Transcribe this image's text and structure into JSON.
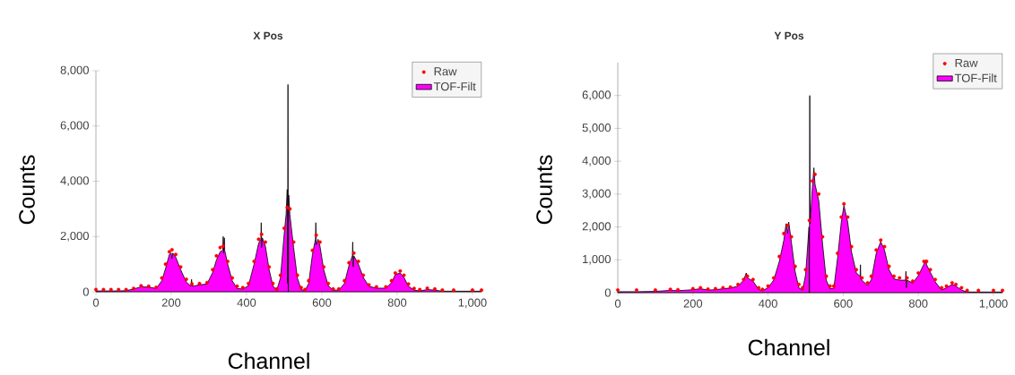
{
  "chart_data": [
    {
      "type": "area",
      "title": "X Pos",
      "xlabel": "Channel",
      "ylabel": "Counts",
      "xlim": [
        0,
        1024
      ],
      "ylim": [
        0,
        8000
      ],
      "xticks": [
        0,
        200,
        400,
        600,
        800,
        {
          "value": 1000,
          "label": "1,000"
        }
      ],
      "yticks": [
        0,
        {
          "value": 2000,
          "label": "2,000"
        },
        {
          "value": 4000,
          "label": "4,000"
        },
        {
          "value": 6000,
          "label": "6,000"
        },
        {
          "value": 8000,
          "label": "8,000"
        }
      ],
      "legend": "top right",
      "series": [
        {
          "name": "Raw",
          "type": "scatter",
          "color": "#ff0000",
          "x": [
            0,
            20,
            40,
            60,
            80,
            100,
            120,
            140,
            160,
            175,
            185,
            195,
            202,
            212,
            225,
            240,
            255,
            275,
            295,
            310,
            320,
            330,
            338,
            350,
            362,
            375,
            390,
            405,
            420,
            432,
            440,
            450,
            460,
            470,
            480,
            490,
            500,
            508,
            515,
            525,
            535,
            545,
            555,
            565,
            575,
            585,
            595,
            605,
            617,
            630,
            645,
            660,
            672,
            685,
            697,
            710,
            725,
            745,
            770,
            785,
            795,
            808,
            818,
            830,
            845,
            860,
            880,
            900,
            920,
            950,
            1000,
            1024
          ],
          "values": [
            80,
            80,
            80,
            80,
            80,
            120,
            220,
            200,
            160,
            500,
            1000,
            1450,
            1520,
            1350,
            900,
            450,
            280,
            300,
            330,
            800,
            1300,
            1600,
            1650,
            1100,
            500,
            200,
            150,
            300,
            1100,
            1900,
            2080,
            1800,
            900,
            300,
            100,
            600,
            2300,
            3050,
            3000,
            1800,
            600,
            150,
            80,
            400,
            1500,
            2050,
            1800,
            900,
            300,
            100,
            100,
            400,
            1050,
            1400,
            1100,
            600,
            250,
            180,
            180,
            400,
            680,
            750,
            600,
            280,
            120,
            80,
            130,
            100,
            60,
            60,
            60,
            60
          ]
        },
        {
          "name": "TOF-Filt",
          "color": "#ff00ff",
          "x": [
            0,
            20,
            40,
            60,
            80,
            100,
            120,
            140,
            160,
            175,
            185,
            195,
            200,
            202,
            204,
            212,
            225,
            240,
            252,
            254,
            256,
            275,
            295,
            310,
            320,
            330,
            337,
            338,
            339,
            341,
            342,
            350,
            362,
            375,
            390,
            405,
            420,
            432,
            438,
            439,
            440,
            442,
            450,
            460,
            470,
            480,
            490,
            500,
            505,
            508,
            509,
            510,
            511,
            512,
            515,
            525,
            535,
            545,
            555,
            565,
            575,
            583,
            584,
            585,
            590,
            595,
            605,
            617,
            630,
            645,
            660,
            672,
            681,
            682,
            683,
            685,
            697,
            710,
            725,
            745,
            770,
            785,
            795,
            808,
            818,
            830,
            845,
            860,
            880,
            900,
            920,
            950,
            1000,
            1024
          ],
          "values": [
            30,
            30,
            30,
            30,
            40,
            100,
            180,
            170,
            120,
            400,
            850,
            1350,
            1400,
            1200,
            1400,
            1250,
            800,
            350,
            200,
            450,
            200,
            250,
            280,
            700,
            1150,
            1450,
            1500,
            2000,
            1400,
            1950,
            1500,
            1000,
            400,
            120,
            100,
            220,
            1000,
            1750,
            1900,
            2500,
            1600,
            1950,
            1650,
            800,
            220,
            50,
            500,
            2100,
            2800,
            3700,
            300,
            7500,
            0,
            3500,
            2800,
            1600,
            500,
            80,
            40,
            300,
            1350,
            1900,
            2500,
            1700,
            1900,
            1650,
            800,
            220,
            60,
            60,
            300,
            950,
            1300,
            1800,
            900,
            1300,
            1000,
            520,
            200,
            130,
            130,
            330,
            620,
            680,
            520,
            200,
            60,
            30,
            80,
            60,
            20,
            20,
            20,
            20
          ]
        }
      ]
    },
    {
      "type": "area",
      "title": "Y Pos",
      "xlabel": "Channel",
      "ylabel": "Counts",
      "xlim": [
        0,
        1024
      ],
      "ylim": [
        0,
        7000
      ],
      "xticks": [
        0,
        200,
        400,
        600,
        800,
        {
          "value": 1000,
          "label": "1,000"
        }
      ],
      "yticks": [
        0,
        {
          "value": 1000,
          "label": "1,000"
        },
        {
          "value": 2000,
          "label": "2,000"
        },
        {
          "value": 3000,
          "label": "3,000"
        },
        {
          "value": 4000,
          "label": "4,000"
        },
        {
          "value": 5000,
          "label": "5,000"
        },
        {
          "value": 6000,
          "label": "6,000"
        }
      ],
      "legend": "top right",
      "series": [
        {
          "name": "Raw",
          "type": "scatter",
          "color": "#ff0000",
          "x": [
            0,
            50,
            100,
            140,
            160,
            200,
            220,
            240,
            260,
            280,
            300,
            320,
            335,
            345,
            360,
            375,
            385,
            400,
            415,
            430,
            442,
            452,
            462,
            472,
            482,
            492,
            500,
            510,
            518,
            525,
            535,
            545,
            555,
            565,
            575,
            585,
            595,
            602,
            612,
            622,
            635,
            650,
            665,
            675,
            688,
            700,
            710,
            722,
            735,
            750,
            770,
            785,
            800,
            815,
            822,
            832,
            845,
            862,
            875,
            890,
            900,
            915,
            930,
            960,
            1000,
            1024
          ],
          "values": [
            80,
            80,
            80,
            100,
            90,
            120,
            150,
            110,
            120,
            150,
            170,
            250,
            400,
            500,
            400,
            150,
            100,
            200,
            450,
            1100,
            1800,
            2050,
            1700,
            800,
            250,
            150,
            700,
            2200,
            3400,
            3600,
            3000,
            1700,
            500,
            200,
            200,
            1200,
            2300,
            2700,
            2300,
            1400,
            700,
            450,
            300,
            500,
            1300,
            1600,
            1400,
            800,
            500,
            450,
            450,
            350,
            600,
            950,
            950,
            700,
            400,
            150,
            200,
            300,
            250,
            150,
            70,
            70,
            70,
            70
          ]
        },
        {
          "name": "TOF-Filt",
          "color": "#ff00ff",
          "x": [
            0,
            50,
            100,
            140,
            160,
            200,
            220,
            240,
            260,
            280,
            300,
            320,
            335,
            342,
            345,
            360,
            375,
            385,
            400,
            415,
            430,
            442,
            448,
            452,
            455,
            462,
            472,
            482,
            492,
            500,
            509,
            510,
            511,
            512,
            518,
            522,
            525,
            535,
            545,
            555,
            565,
            575,
            585,
            595,
            602,
            612,
            622,
            635,
            645,
            646,
            647,
            650,
            665,
            675,
            688,
            700,
            710,
            722,
            735,
            750,
            766,
            767,
            768,
            770,
            785,
            800,
            815,
            820,
            822,
            832,
            845,
            862,
            875,
            890,
            900,
            915,
            930,
            960,
            1000,
            1024
          ],
          "values": [
            30,
            30,
            40,
            70,
            60,
            90,
            120,
            80,
            90,
            120,
            140,
            200,
            380,
            600,
            450,
            350,
            100,
            60,
            150,
            380,
            950,
            1600,
            2100,
            1800,
            2150,
            1550,
            650,
            150,
            80,
            550,
            2000,
            0,
            6000,
            2100,
            3200,
            3800,
            3300,
            2800,
            1500,
            380,
            120,
            130,
            1050,
            2150,
            2650,
            2150,
            1250,
            600,
            500,
            850,
            400,
            380,
            220,
            400,
            1200,
            1550,
            1300,
            700,
            420,
            380,
            380,
            650,
            150,
            380,
            290,
            520,
            870,
            1000,
            850,
            620,
            330,
            80,
            150,
            250,
            200,
            80,
            20,
            20,
            20,
            20
          ]
        }
      ]
    }
  ]
}
